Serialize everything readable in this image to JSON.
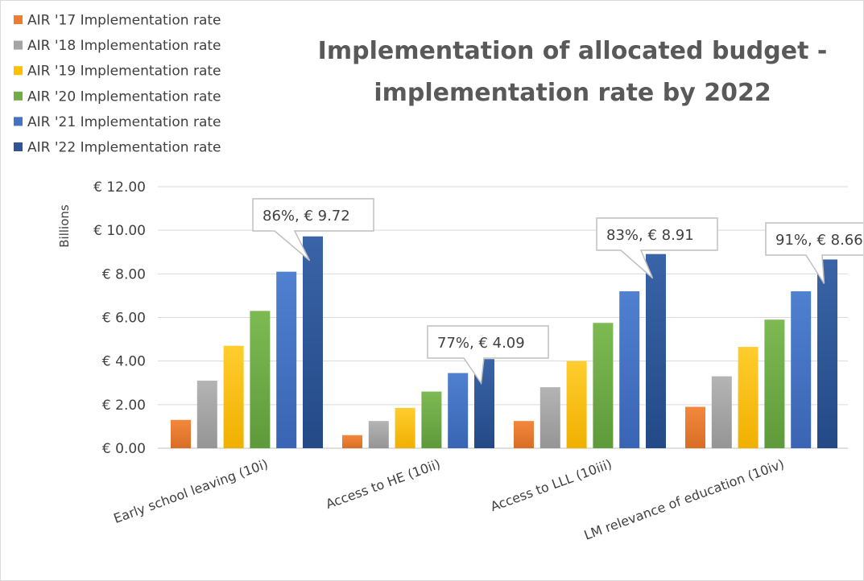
{
  "chart_data": {
    "type": "bar",
    "title_lines": [
      "Implementation of allocated budget -",
      "implementation rate by 2022"
    ],
    "ylabel": "Billions",
    "ylim": [
      0,
      12
    ],
    "yticks": [
      0,
      2,
      4,
      6,
      8,
      10,
      12
    ],
    "ytick_labels": [
      "€ 0.00",
      "€ 2.00",
      "€ 4.00",
      "€ 6.00",
      "€ 8.00",
      "€ 10.00",
      "€ 12.00"
    ],
    "grid": true,
    "legend_position": "top-left",
    "categories": [
      "Early school leaving (10i)",
      "Access to HE (10ii)",
      "Access to LLL (10iii)",
      "LM relevance of education (10iv)"
    ],
    "series": [
      {
        "name": "AIR '17 Implementation rate",
        "color": "#ed7d31",
        "values": [
          1.3,
          0.6,
          1.25,
          1.9
        ]
      },
      {
        "name": "AIR '18 Implementation rate",
        "color": "#a5a5a5",
        "values": [
          3.1,
          1.25,
          2.8,
          3.3
        ]
      },
      {
        "name": "AIR '19 Implementation rate",
        "color": "#ffc000",
        "values": [
          4.7,
          1.85,
          4.0,
          4.65
        ]
      },
      {
        "name": "AIR '20 Implementation rate",
        "color": "#70ad47",
        "values": [
          6.3,
          2.6,
          5.75,
          5.9
        ]
      },
      {
        "name": "AIR '21 Implementation rate",
        "color": "#4472c4",
        "values": [
          8.1,
          3.45,
          7.2,
          7.2
        ]
      },
      {
        "name": "AIR '22 Implementation rate",
        "color": "#2f5597",
        "values": [
          9.72,
          4.09,
          8.91,
          8.66
        ]
      }
    ],
    "annotations": [
      "86%, € 9.72",
      "77%, € 4.09",
      "83%, € 8.91",
      "91%, € 8.66"
    ]
  }
}
